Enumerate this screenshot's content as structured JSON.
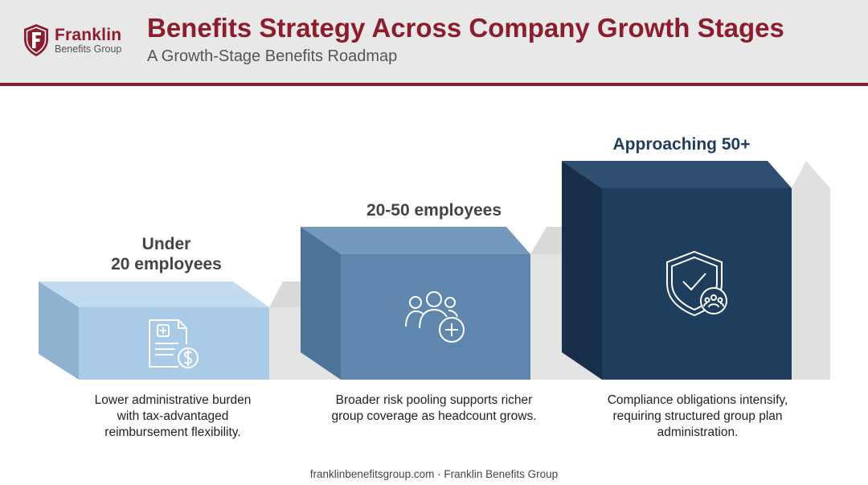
{
  "header": {
    "brand_name": "Franklin",
    "brand_sub": "Benefits Group",
    "title": "Benefits Strategy Across Company Growth Stages",
    "subtitle": "A Growth-Stage Benefits Roadmap"
  },
  "stages": [
    {
      "label_line1": "Under",
      "label_line2": "20 employees",
      "icon": "document-dollar-icon",
      "description_line1": "Lower administrative burden",
      "description_line2": "with tax-advantaged",
      "description_line3": "reimbursement flexibility.",
      "color": "#a9cbe8"
    },
    {
      "label_line1": "20-50 employees",
      "icon": "people-plus-icon",
      "description_line1": "Broader risk pooling supports richer",
      "description_line2": "group coverage as headcount grows.",
      "color": "#5f87ad"
    },
    {
      "label_line1": "Approaching 50+",
      "icon": "shield-check-people-icon",
      "description_line1": "Compliance obligations intensify,",
      "description_line2": "requiring structured group plan",
      "description_line3": "administration.",
      "color": "#1f3d5c"
    }
  ],
  "footer": {
    "text": "franklinbenefitsgroup.com · Franklin Benefits Group"
  },
  "colors": {
    "brand": "#8b1d2c",
    "label_gray": "#444444",
    "label_navy": "#1f3d5c"
  }
}
